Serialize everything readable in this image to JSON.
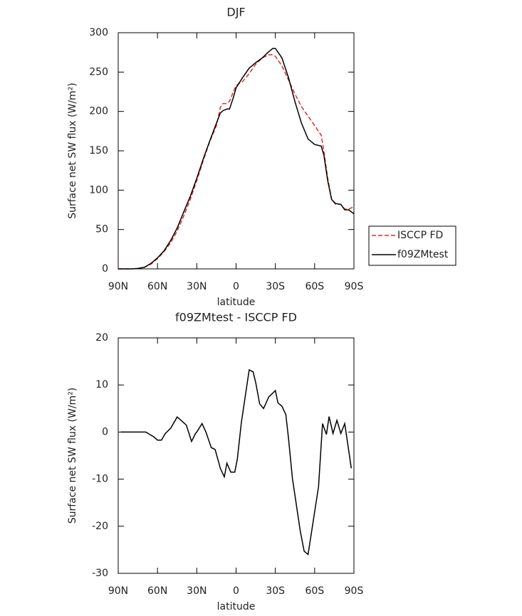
{
  "chart_data": [
    {
      "type": "line",
      "title": "DJF",
      "xlabel": "latitude",
      "ylabel": "Surface net SW flux (W/m²)",
      "x": [
        90,
        85,
        80,
        75,
        70,
        65,
        60,
        55,
        50,
        45,
        40,
        35,
        30,
        25,
        20,
        15,
        12,
        10,
        7,
        5,
        2,
        0,
        -5,
        -10,
        -15,
        -20,
        -25,
        -28,
        -30,
        -35,
        -40,
        -45,
        -50,
        -55,
        -60,
        -65,
        -67,
        -70,
        -73,
        -76,
        -80,
        -83,
        -86,
        -90
      ],
      "series": [
        {
          "name": "ISCCP FD",
          "color": "#e8272a",
          "line_style": "dashed",
          "values": [
            0,
            0,
            0,
            0.5,
            2,
            6,
            13,
            22,
            33,
            48,
            67,
            88,
            112,
            138,
            162,
            182,
            205,
            210,
            210,
            213,
            225,
            233,
            238,
            248,
            260,
            268,
            272,
            272,
            270,
            258,
            240,
            222,
            206,
            194,
            182,
            170,
            150,
            115,
            88,
            82,
            82,
            76,
            76,
            79
          ]
        },
        {
          "name": "f09ZMtest",
          "color": "#000000",
          "line_style": "solid",
          "values": [
            0,
            0,
            0,
            0.5,
            2,
            7,
            14,
            23,
            36,
            52,
            72,
            92,
            115,
            140,
            163,
            185,
            198,
            201,
            203,
            203,
            218,
            230,
            243,
            255,
            262,
            268,
            276,
            280,
            280,
            268,
            243,
            212,
            185,
            165,
            158,
            156,
            145,
            112,
            88,
            83,
            82,
            75,
            75,
            70
          ]
        }
      ],
      "xlim": [
        90,
        -90
      ],
      "xticks": [
        {
          "value": 90,
          "label": "90N"
        },
        {
          "value": 60,
          "label": "60N"
        },
        {
          "value": 30,
          "label": "30N"
        },
        0,
        {
          "value": -30,
          "label": "30S"
        },
        {
          "value": -60,
          "label": "60S"
        },
        {
          "value": -90,
          "label": "90S"
        }
      ],
      "ylim": [
        0,
        300
      ],
      "yticks": [
        0,
        50,
        100,
        150,
        200,
        250,
        300
      ],
      "legend": "right"
    },
    {
      "type": "line",
      "title": "f09ZMtest - ISCCP FD",
      "xlabel": "latitude",
      "ylabel": "Surface net SW flux (W/m²)",
      "x": [
        88,
        69,
        63,
        60,
        57,
        54,
        50,
        45,
        38,
        34,
        31,
        30,
        26,
        23,
        19,
        16,
        12,
        9,
        7,
        4,
        1,
        -1,
        -4,
        -10,
        -13,
        -15,
        -18,
        -21,
        -25,
        -30,
        -32,
        -35,
        -38,
        -40,
        -43,
        -49,
        -52,
        -55,
        -63,
        -66,
        -69,
        -71,
        -74,
        -77,
        -80,
        -83,
        -88
      ],
      "series": [
        {
          "color": "#000000",
          "line_style": "solid",
          "values": [
            0,
            0,
            -1,
            -1.7,
            -1.7,
            -0.3,
            0.8,
            3.2,
            1.5,
            -2,
            -0.3,
            0,
            1.8,
            0,
            -3.3,
            -3.7,
            -7.7,
            -9.5,
            -6.6,
            -8.5,
            -8.5,
            -5.7,
            2,
            13.2,
            12.8,
            10.5,
            6,
            5,
            7.5,
            8.8,
            6.2,
            5.5,
            3.7,
            -1.3,
            -9.8,
            -21,
            -25.3,
            -26,
            -11.6,
            1.8,
            -0.5,
            3.3,
            -0.3,
            2.5,
            -0.3,
            1.8,
            -7.7
          ]
        }
      ],
      "xlim": [
        90,
        -90
      ],
      "xticks": [
        {
          "value": 90,
          "label": "90N"
        },
        {
          "value": 60,
          "label": "60N"
        },
        {
          "value": 30,
          "label": "30N"
        },
        0,
        {
          "value": -30,
          "label": "30S"
        },
        {
          "value": -60,
          "label": "60S"
        },
        {
          "value": -90,
          "label": "90S"
        }
      ],
      "ylim": [
        -30,
        20
      ],
      "yticks": [
        -30,
        -20,
        -10,
        0,
        10,
        20
      ]
    }
  ]
}
